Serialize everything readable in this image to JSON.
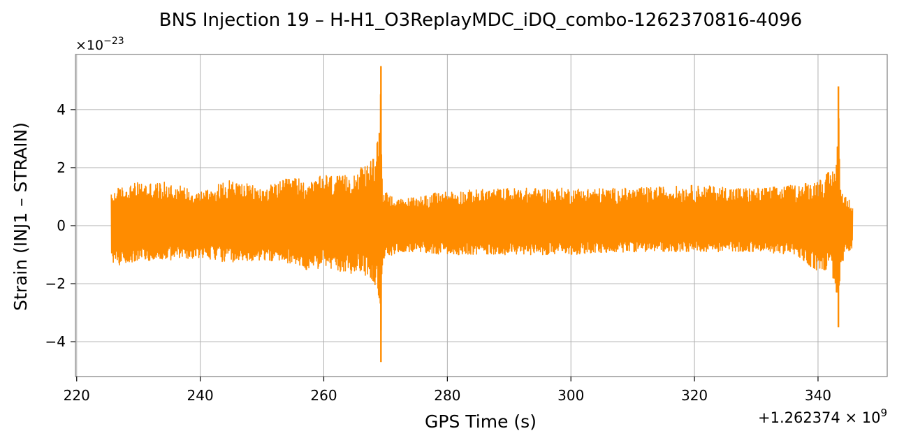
{
  "chart_data": {
    "type": "line",
    "title": "BNS Injection 19 – H-H1_O3ReplayMDC_iDQ_combo-1262370816-4096",
    "xlabel": "GPS Time (s)",
    "ylabel": "Strain (INJ1 – STRAIN)",
    "y_scale_label": "×10",
    "y_scale_exponent": "−23",
    "x_offset_label": "+1.262374 × 10",
    "x_offset_exponent": "9",
    "xlim": [
      219.8,
      351.2
    ],
    "ylim": [
      -5.2,
      5.9
    ],
    "x_ticks": [
      220,
      240,
      260,
      280,
      300,
      320,
      340
    ],
    "x_tick_labels": [
      "220",
      "240",
      "260",
      "280",
      "300",
      "320",
      "340"
    ],
    "y_ticks": [
      -4,
      -2,
      0,
      2,
      4
    ],
    "y_tick_labels": [
      "−4",
      "−2",
      "0",
      "2",
      "4"
    ],
    "grid": true,
    "line_color": "#ff8c00",
    "series": [
      {
        "x_start": 225.6,
        "x_end": 345.6,
        "envelope": [
          [
            225.6,
            -1.2,
            1.1
          ],
          [
            226.5,
            -1.4,
            1.3
          ],
          [
            230,
            -1.2,
            1.5
          ],
          [
            235,
            -1.2,
            1.5
          ],
          [
            240,
            -1.1,
            1.2
          ],
          [
            245,
            -1.3,
            1.6
          ],
          [
            250,
            -1.2,
            1.3
          ],
          [
            255,
            -1.3,
            1.7
          ],
          [
            258,
            -1.6,
            1.5
          ],
          [
            260,
            -1.4,
            1.8
          ],
          [
            263,
            -1.7,
            1.7
          ],
          [
            266,
            -1.6,
            2.0
          ],
          [
            268,
            -1.9,
            2.3
          ],
          [
            269.0,
            -2.5,
            3.2
          ],
          [
            269.25,
            -4.7,
            5.5
          ],
          [
            269.5,
            -1.3,
            1.3
          ],
          [
            272,
            -0.9,
            0.9
          ],
          [
            280,
            -1.0,
            1.2
          ],
          [
            290,
            -1.0,
            1.3
          ],
          [
            300,
            -1.0,
            1.3
          ],
          [
            310,
            -0.9,
            1.3
          ],
          [
            320,
            -0.9,
            1.4
          ],
          [
            330,
            -0.9,
            1.3
          ],
          [
            336,
            -1.0,
            1.4
          ],
          [
            340,
            -1.6,
            1.6
          ],
          [
            342,
            -1.5,
            1.9
          ],
          [
            343.0,
            -2.3,
            2.1
          ],
          [
            343.3,
            -3.5,
            4.8
          ],
          [
            343.6,
            -1.5,
            1.4
          ],
          [
            344.5,
            -1.0,
            1.0
          ],
          [
            345.6,
            -0.8,
            0.8
          ]
        ]
      }
    ]
  }
}
